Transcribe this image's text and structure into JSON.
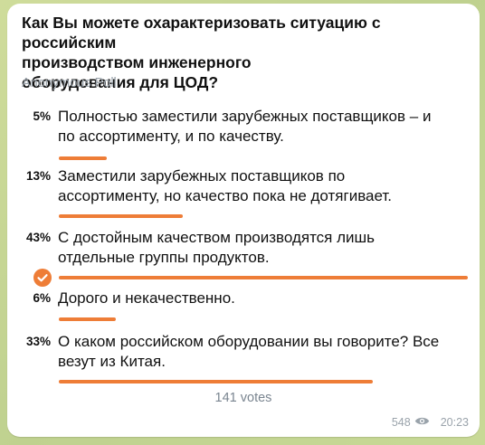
{
  "poll": {
    "question_lines": [
      "Как Вы можете охарактеризовать ситуацию с российским",
      "производством инженерного",
      "оборудования для ЦОД?"
    ],
    "type_label": "Anonymous Poll",
    "options": [
      {
        "percent": "5%",
        "value": 5,
        "lines": [
          "Полностью заместили зарубежных поставщиков – и",
          "по ассортименту, и по качеству."
        ],
        "chosen": false
      },
      {
        "percent": "13%",
        "value": 13,
        "lines": [
          "Заместили зарубежных поставщиков по",
          "ассортименту, но качество пока не дотягивает."
        ],
        "chosen": false
      },
      {
        "percent": "43%",
        "value": 43,
        "lines": [
          "С достойным качеством производятся лишь",
          "отдельные группы продуктов."
        ],
        "chosen": true
      },
      {
        "percent": "6%",
        "value": 6,
        "lines": [
          "Дорого и некачественно."
        ],
        "chosen": false
      },
      {
        "percent": "33%",
        "value": 33,
        "lines": [
          "О каком российском оборудовании вы говорите? Все",
          "везут из Китая."
        ],
        "chosen": false
      }
    ],
    "votes_label": "141 votes",
    "views": "548",
    "time": "20:23"
  },
  "colors": {
    "accent": "#ee7d37",
    "background": "#c9d79a"
  },
  "icons": {
    "chosen": "check-circle-icon",
    "views": "eye-icon"
  }
}
